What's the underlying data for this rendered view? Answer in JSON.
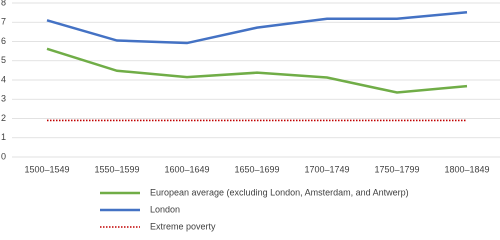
{
  "chart_data": {
    "type": "line",
    "categories": [
      "1500–1549",
      "1550–1599",
      "1600–1649",
      "1650–1699",
      "1700–1749",
      "1750–1799",
      "1800–1849"
    ],
    "series": [
      {
        "name": "European average (excluding London, Amsterdam, and Antwerp)",
        "color": "#70ad47",
        "dash": "solid",
        "values": [
          5.62,
          4.48,
          4.15,
          4.38,
          4.13,
          3.35,
          3.68
        ]
      },
      {
        "name": "London",
        "color": "#4472c4",
        "dash": "solid",
        "values": [
          7.1,
          6.05,
          5.92,
          6.72,
          7.18,
          7.18,
          7.52
        ]
      },
      {
        "name": "Extreme poverty",
        "color": "#c00000",
        "dash": "dotted",
        "values": [
          1.9,
          1.9,
          1.9,
          1.9,
          1.9,
          1.9,
          1.9
        ]
      }
    ],
    "ylim": [
      0,
      8
    ],
    "yticks": [
      0,
      1,
      2,
      3,
      4,
      5,
      6,
      7,
      8
    ],
    "grid": true
  }
}
